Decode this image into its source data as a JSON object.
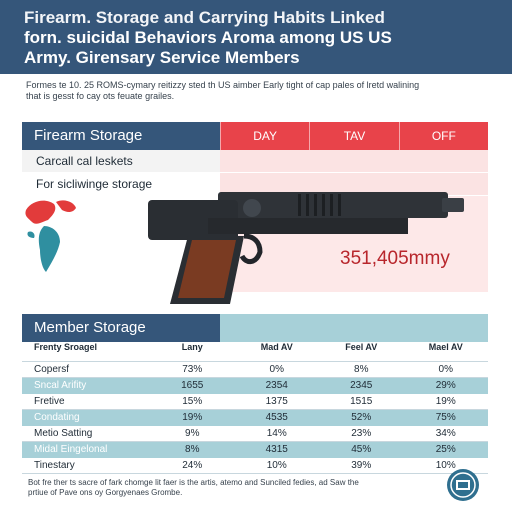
{
  "header": {
    "line1": "Firearm. Storage and Carrying Habits Linked",
    "line2": "forn. suicidal Behaviors Aroma among US US",
    "line3": "Army. Girensary Service Members"
  },
  "intro": {
    "line1": "Formes te 10. 25 ROMS-cymary reitizzy sted th US aimber Early tight of cap pales of lretd walining",
    "line2": "that is gesst fo cay ots feuate grailes."
  },
  "storage_section": {
    "title": "Firearm Storage",
    "columns": [
      "DAY",
      "TAV",
      "OFF"
    ],
    "rows": [
      "Carcall cal leskets",
      "For sicliwinge storage"
    ],
    "big_number": "351,405mmy"
  },
  "member_section": {
    "title": "Member Storage",
    "table": {
      "header": [
        "Frenty Sroagel",
        "Lany",
        "Mad AV",
        "Feel AV",
        "Mael AV"
      ],
      "rows": [
        [
          "Copersf",
          "73%",
          "0%",
          "8%",
          "0%"
        ],
        [
          "Sncal Arifity",
          "1655",
          "2354",
          "2345",
          "29%"
        ],
        [
          "Fretive",
          "15%",
          "1375",
          "1515",
          "19%"
        ],
        [
          "Condating",
          "19%",
          "4535",
          "52%",
          "75%"
        ],
        [
          "Metio Satting",
          "9%",
          "14%",
          "23%",
          "34%"
        ],
        [
          "Midal Eingelonal",
          "8%",
          "4315",
          "45%",
          "25%"
        ],
        [
          "Tinestary",
          "24%",
          "10%",
          "39%",
          "10%"
        ]
      ]
    }
  },
  "footer": {
    "line1": "Bot fre ther ts sacre of fark chomge lit faer is the artis, atemo and Sunciled fedies, ad Saw the",
    "line2": "prtiue of Pave ons oy Gorgyenaes Grombe."
  },
  "icons": {
    "map": "world-map-icon",
    "pistol": "pistol-illustration",
    "seal": "army-seal-icon"
  },
  "colors": {
    "header_blue": "#35567a",
    "accent_red": "#e8434a",
    "teal": "#a7d0d8",
    "pink": "#fbe3e3"
  }
}
